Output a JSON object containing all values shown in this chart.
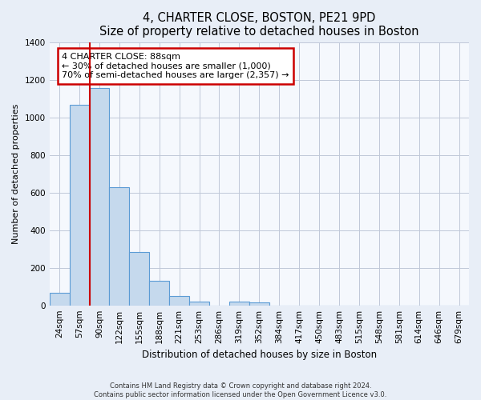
{
  "title": "4, CHARTER CLOSE, BOSTON, PE21 9PD",
  "subtitle": "Size of property relative to detached houses in Boston",
  "xlabel": "Distribution of detached houses by size in Boston",
  "ylabel": "Number of detached properties",
  "bar_labels": [
    "24sqm",
    "57sqm",
    "90sqm",
    "122sqm",
    "155sqm",
    "188sqm",
    "221sqm",
    "253sqm",
    "286sqm",
    "319sqm",
    "352sqm",
    "384sqm",
    "417sqm",
    "450sqm",
    "483sqm",
    "515sqm",
    "548sqm",
    "581sqm",
    "614sqm",
    "646sqm",
    "679sqm"
  ],
  "bar_values": [
    65,
    1065,
    1155,
    630,
    285,
    130,
    48,
    22,
    0,
    22,
    15,
    0,
    0,
    0,
    0,
    0,
    0,
    0,
    0,
    0,
    0
  ],
  "bar_color": "#c5d9ed",
  "bar_edge_color": "#5b9bd5",
  "property_line_index": 2,
  "annotation_title": "4 CHARTER CLOSE: 88sqm",
  "annotation_line1": "← 30% of detached houses are smaller (1,000)",
  "annotation_line2": "70% of semi-detached houses are larger (2,357) →",
  "annotation_box_color": "#ffffff",
  "annotation_box_edge": "#cc0000",
  "vertical_line_color": "#cc0000",
  "ylim": [
    0,
    1400
  ],
  "yticks": [
    0,
    200,
    400,
    600,
    800,
    1000,
    1200,
    1400
  ],
  "footer1": "Contains HM Land Registry data © Crown copyright and database right 2024.",
  "footer2": "Contains public sector information licensed under the Open Government Licence v3.0.",
  "background_color": "#e8eef7",
  "plot_bg_color": "#f5f8fd"
}
